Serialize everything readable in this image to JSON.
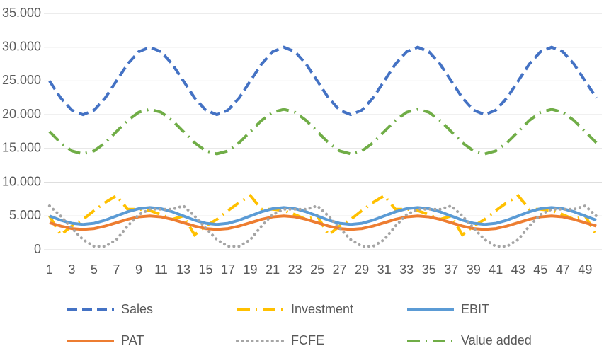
{
  "chart_data": {
    "type": "line",
    "categories": [
      "1",
      null,
      "3",
      null,
      "5",
      null,
      "7",
      null,
      "9",
      null,
      "11",
      null,
      "13",
      null,
      "15",
      null,
      "17",
      null,
      "19",
      null,
      "21",
      null,
      "23",
      null,
      "25",
      null,
      "27",
      null,
      "29",
      null,
      "31",
      null,
      "33",
      null,
      "35",
      null,
      "37",
      null,
      "39",
      null,
      "41",
      null,
      "43",
      null,
      "45",
      null,
      "47",
      null,
      "49",
      null
    ],
    "ylim": [
      0,
      35000
    ],
    "yticks": [
      0,
      {
        "value": 5000,
        "label": "5.000"
      },
      {
        "value": 10000,
        "label": "10.000"
      },
      {
        "value": 15000,
        "label": "15.000"
      },
      {
        "value": 20000,
        "label": "20.000"
      },
      {
        "value": 25000,
        "label": "25.000"
      },
      {
        "value": 30000,
        "label": "30.000"
      },
      {
        "value": 35000,
        "label": "35.000"
      }
    ],
    "grid": true,
    "legend": "bottom",
    "series": [
      {
        "name": "Sales",
        "color": "#4472c4",
        "style": "dash",
        "values": [
          25000,
          22500,
          20670,
          20000,
          20670,
          22500,
          25000,
          27500,
          29330,
          30000,
          29330,
          27500,
          25000,
          22500,
          20670,
          20000,
          20670,
          22500,
          25000,
          27500,
          29330,
          30000,
          29330,
          27500,
          25000,
          22500,
          20670,
          20000,
          20670,
          22500,
          25000,
          27500,
          29330,
          30000,
          29330,
          27500,
          25000,
          22500,
          20670,
          20000,
          20670,
          22500,
          25000,
          27500,
          29330,
          30000,
          29330,
          27500,
          25000,
          22500
        ]
      },
      {
        "name": "Investment",
        "color": "#ffc000",
        "style": "long-dash-dot",
        "values": [
          5000,
          2200,
          3500,
          4500,
          5800,
          7000,
          8000,
          6000,
          6000,
          5800,
          5200,
          4500,
          5000,
          2200,
          3500,
          4500,
          5800,
          7000,
          8000,
          6000,
          6000,
          5800,
          5200,
          4500,
          5000,
          2200,
          3500,
          4500,
          5800,
          7000,
          8000,
          6000,
          6000,
          5800,
          5200,
          4500,
          5000,
          2200,
          3500,
          4500,
          5800,
          7000,
          8000,
          6000,
          6000,
          5800,
          5200,
          4500,
          5000,
          2200
        ]
      },
      {
        "name": "EBIT",
        "color": "#5b9bd5",
        "style": "solid",
        "values": [
          5000,
          4375,
          3918,
          3750,
          3918,
          4375,
          5000,
          5625,
          6083,
          6250,
          6083,
          5625,
          5000,
          4375,
          3918,
          3750,
          3918,
          4375,
          5000,
          5625,
          6083,
          6250,
          6083,
          5625,
          5000,
          4375,
          3918,
          3750,
          3918,
          4375,
          5000,
          5625,
          6083,
          6250,
          6083,
          5625,
          5000,
          4375,
          3918,
          3750,
          3918,
          4375,
          5000,
          5625,
          6083,
          6250,
          6083,
          5625,
          5000,
          4375
        ]
      },
      {
        "name": "PAT",
        "color": "#ed7d31",
        "style": "solid",
        "values": [
          4000,
          3500,
          3134,
          3000,
          3134,
          3500,
          4000,
          4500,
          4866,
          5000,
          4866,
          4500,
          4000,
          3500,
          3134,
          3000,
          3134,
          3500,
          4000,
          4500,
          4866,
          5000,
          4866,
          4500,
          4000,
          3500,
          3134,
          3000,
          3134,
          3500,
          4000,
          4500,
          4866,
          5000,
          4866,
          4500,
          4000,
          3500,
          3134,
          3000,
          3134,
          3500,
          4000,
          4500,
          4866,
          5000,
          4866,
          4500,
          4000,
          3500
        ]
      },
      {
        "name": "FCFE",
        "color": "#a5a5a5",
        "style": "round-dot",
        "values": [
          6500,
          5000,
          3200,
          1500,
          500,
          500,
          1500,
          3500,
          5200,
          6000,
          6000,
          6000,
          6500,
          5000,
          3200,
          1500,
          500,
          500,
          1500,
          3500,
          5200,
          6000,
          6000,
          6000,
          6500,
          5000,
          3200,
          1500,
          500,
          500,
          1500,
          3500,
          5200,
          6000,
          6000,
          6000,
          6500,
          5000,
          3200,
          1500,
          500,
          500,
          1500,
          3500,
          5200,
          6000,
          6000,
          6000,
          6500,
          5000
        ]
      },
      {
        "name": "Value added",
        "color": "#70ad47",
        "style": "long-dash-dot",
        "values": [
          17500,
          15850,
          14640,
          14200,
          14640,
          15850,
          17500,
          19150,
          20360,
          20800,
          20360,
          19150,
          17500,
          15850,
          14640,
          14200,
          14640,
          15850,
          17500,
          19150,
          20360,
          20800,
          20360,
          19150,
          17500,
          15850,
          14640,
          14200,
          14640,
          15850,
          17500,
          19150,
          20360,
          20800,
          20360,
          19150,
          17500,
          15850,
          14640,
          14200,
          14640,
          15850,
          17500,
          19150,
          20360,
          20800,
          20360,
          19150,
          17500,
          15850
        ]
      }
    ]
  }
}
